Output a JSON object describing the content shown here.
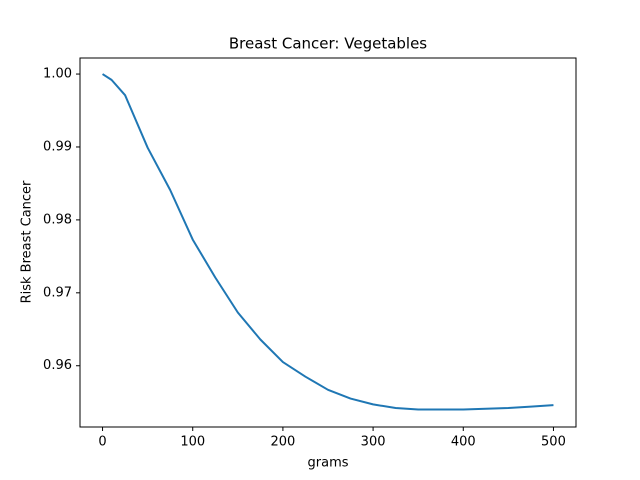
{
  "chart_data": {
    "type": "line",
    "title": "Breast Cancer: Vegetables",
    "xlabel": "grams",
    "ylabel": "Risk Breast Cancer",
    "x": [
      0,
      10,
      25,
      50,
      75,
      100,
      125,
      150,
      175,
      200,
      225,
      250,
      275,
      300,
      325,
      350,
      400,
      425,
      450,
      475,
      500
    ],
    "series": [
      {
        "name": "Risk",
        "color": "#1f77b4",
        "values": [
          1.0,
          0.9992,
          0.9971,
          0.9899,
          0.9841,
          0.9773,
          0.9721,
          0.9673,
          0.9636,
          0.9605,
          0.9585,
          0.9567,
          0.9555,
          0.9547,
          0.9542,
          0.954,
          0.954,
          0.9541,
          0.9542,
          0.9544,
          0.9546
        ]
      }
    ],
    "xlim": [
      -25,
      525
    ],
    "xticks": [
      0,
      100,
      200,
      300,
      400,
      500
    ],
    "ylim": [
      0.9516,
      1.0022
    ],
    "yticks": [
      {
        "value": 0.96,
        "label": "0.96"
      },
      {
        "value": 0.97,
        "label": "0.97"
      },
      {
        "value": 0.98,
        "label": "0.98"
      },
      {
        "value": 0.99,
        "label": "0.99"
      },
      {
        "value": 1.0,
        "label": "1.00"
      }
    ],
    "grid": false
  }
}
